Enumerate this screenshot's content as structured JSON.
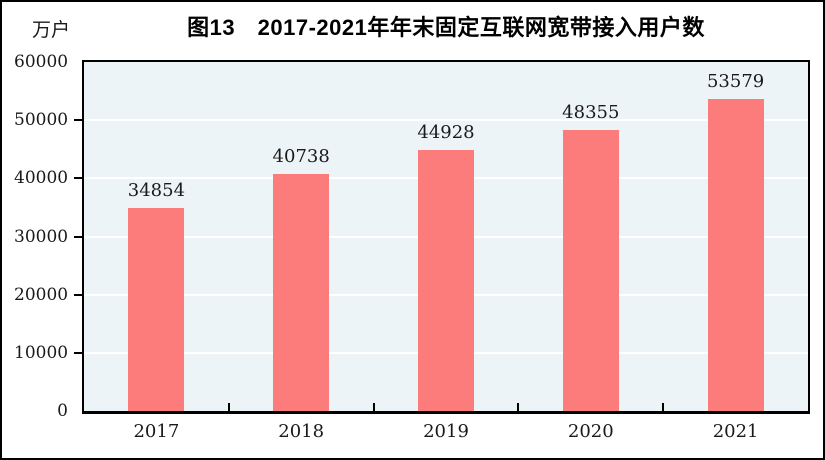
{
  "figure": {
    "title": "图13　2017-2021年年末固定互联网宽带接入用户数",
    "unit_label": "万户"
  },
  "chart_data": {
    "type": "bar",
    "title": "图13 2017-2021年年末固定互联网宽带接入用户数",
    "categories": [
      "2017",
      "2018",
      "2019",
      "2020",
      "2021"
    ],
    "values": [
      34854,
      40738,
      44928,
      48355,
      53579
    ],
    "xlabel": "",
    "ylabel": "万户",
    "ylim": [
      0,
      60000
    ],
    "yticks": [
      0,
      10000,
      20000,
      30000,
      40000,
      50000,
      60000
    ],
    "grid": true,
    "legend_position": "none",
    "data_labels_shown": true,
    "colors": {
      "bar": "#FC7C7C",
      "plot_background": "#EDF4F7",
      "gridline": "#FFFFFF",
      "axis": "#000000",
      "text": "#1A1A1A"
    }
  }
}
